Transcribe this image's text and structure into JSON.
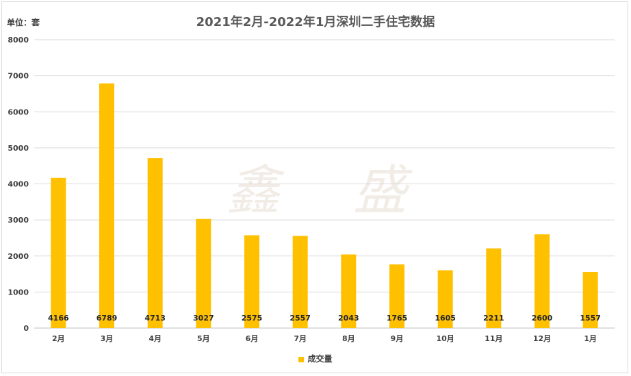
{
  "chart_data": {
    "type": "bar",
    "title": "2021年2月-2022年1月深圳二手住宅数据",
    "unit_label": "单位：套",
    "categories": [
      "2月",
      "3月",
      "4月",
      "5月",
      "6月",
      "7月",
      "8月",
      "9月",
      "10月",
      "11月",
      "12月",
      "1月"
    ],
    "series": [
      {
        "name": "成交量",
        "values": [
          4166,
          6789,
          4713,
          3027,
          2575,
          2557,
          2043,
          1765,
          1605,
          2211,
          2600,
          1557
        ],
        "color": "#FFC000"
      }
    ],
    "ylim": [
      0,
      8000
    ],
    "yticks": [
      0,
      1000,
      2000,
      3000,
      4000,
      5000,
      6000,
      7000,
      8000
    ],
    "grid": true,
    "legend_position": "bottom",
    "watermark": [
      "鑫",
      "盛"
    ]
  }
}
